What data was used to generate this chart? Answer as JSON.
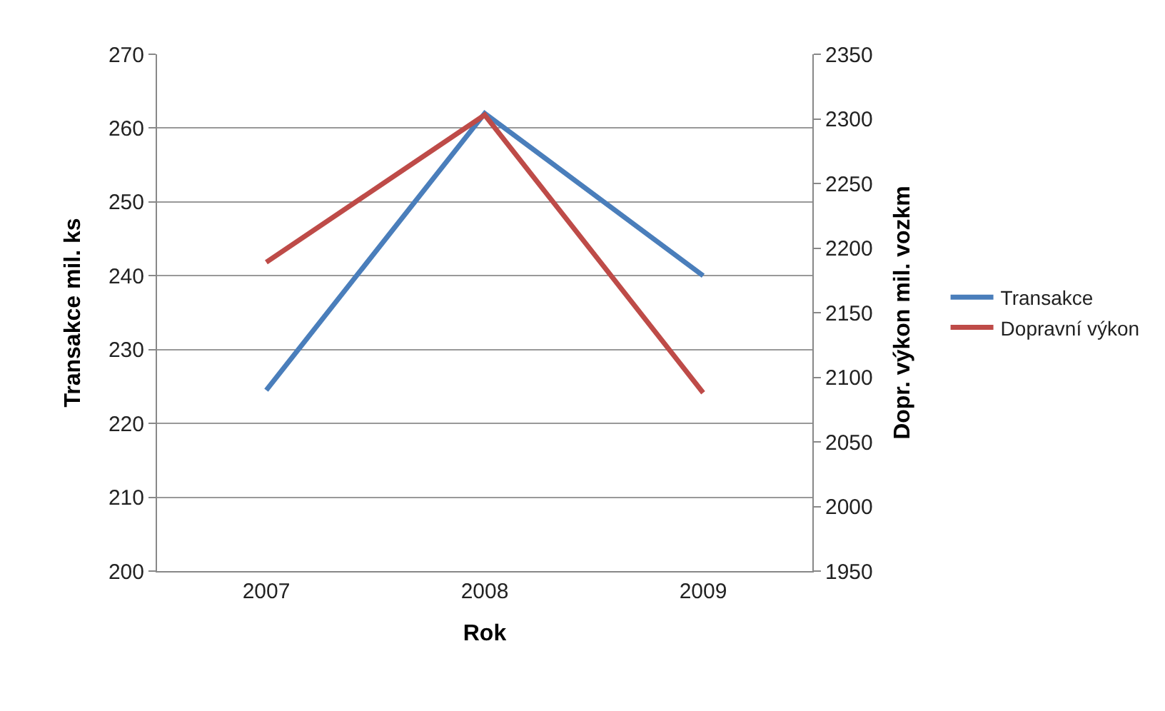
{
  "chart_data": {
    "type": "line",
    "xlabel": "Rok",
    "ylabel": "Transakce mil. ks",
    "y2label": "Dopr. výkon mil. vozkm",
    "categories": [
      "2007",
      "2008",
      "2009"
    ],
    "series": [
      {
        "name": "Transakce",
        "color": "#4a7ebb",
        "values": [
          224.5,
          262,
          240
        ]
      },
      {
        "name": "Dopravní výkon",
        "color": "#be4b48",
        "values": [
          2189,
          2303,
          2088
        ],
        "axis": "y2"
      }
    ],
    "ylim": [
      200,
      270
    ],
    "yticks": [
      200,
      210,
      220,
      230,
      240,
      250,
      260,
      270
    ],
    "y2lim": [
      1950,
      2350
    ],
    "y2ticks": [
      1950,
      2000,
      2050,
      2100,
      2150,
      2200,
      2250,
      2300,
      2350
    ],
    "grid": "y",
    "legend": "right",
    "marker": "none"
  }
}
